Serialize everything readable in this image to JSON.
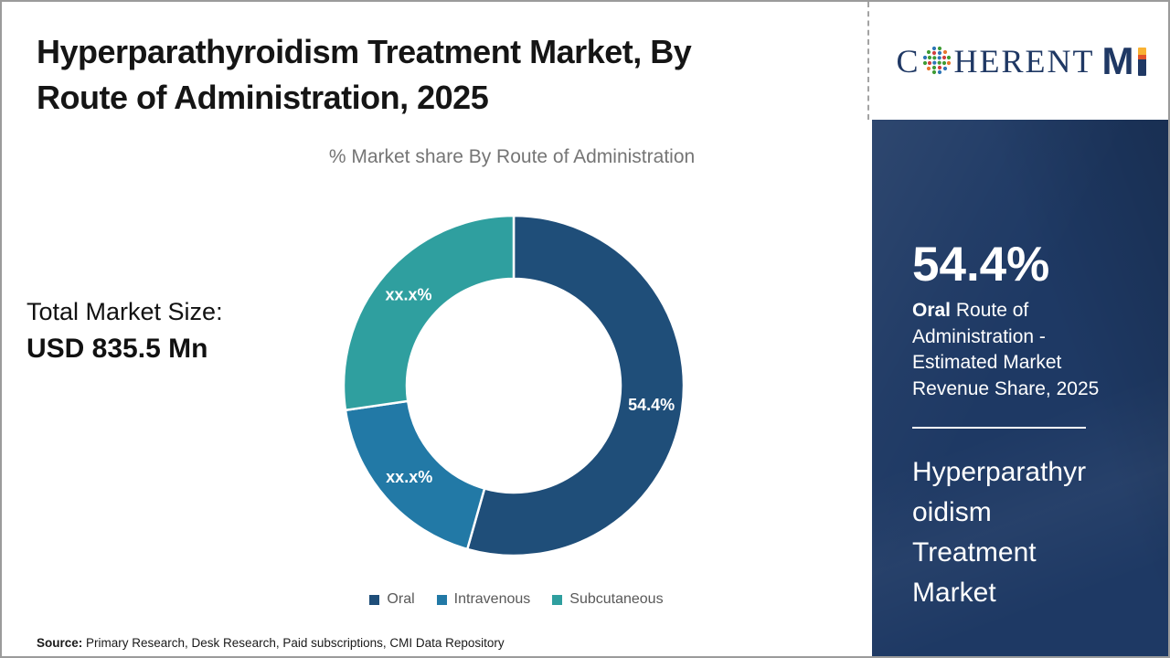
{
  "header": {
    "title": "Hyperparathyroidism Treatment Market, By\nRoute of Administration, 2025",
    "logo": {
      "serif_text": "C HERENT",
      "serif_c": "C",
      "serif_rest": "HERENT",
      "mi_m": "M",
      "navy": "#1f3864",
      "orange": "#f9b233",
      "red": "#e2532a"
    }
  },
  "chart_data": {
    "type": "pie",
    "subtype": "donut",
    "title": "% Market share By Route of Administration",
    "categories": [
      "Oral",
      "Intravenous",
      "Subcutaneous"
    ],
    "values": [
      54.4,
      18.3,
      27.3
    ],
    "displayed_slice_labels": [
      "54.4%",
      "xx.x%",
      "xx.x%"
    ],
    "colors": [
      "#1F4E79",
      "#2279A6",
      "#2F9F9F"
    ],
    "legend_position": "bottom",
    "start_angle_deg": 0,
    "direction": "clockwise",
    "inner_radius_ratio": 0.63
  },
  "left_panel": {
    "market_size_label": "Total Market Size:",
    "market_size_value": "USD 835.5 Mn"
  },
  "sidebar": {
    "stat_value": "54.4%",
    "stat_bold": "Oral",
    "stat_desc": " Route of Administration - Estimated Market Revenue Share, 2025",
    "market_name": "Hyperparathyr\noidism\nTreatment\nMarket",
    "background_color": "#1e3964"
  },
  "footer": {
    "source_label": "Source:",
    "source_text": " Primary Research, Desk Research, Paid subscriptions, CMI Data Repository"
  }
}
